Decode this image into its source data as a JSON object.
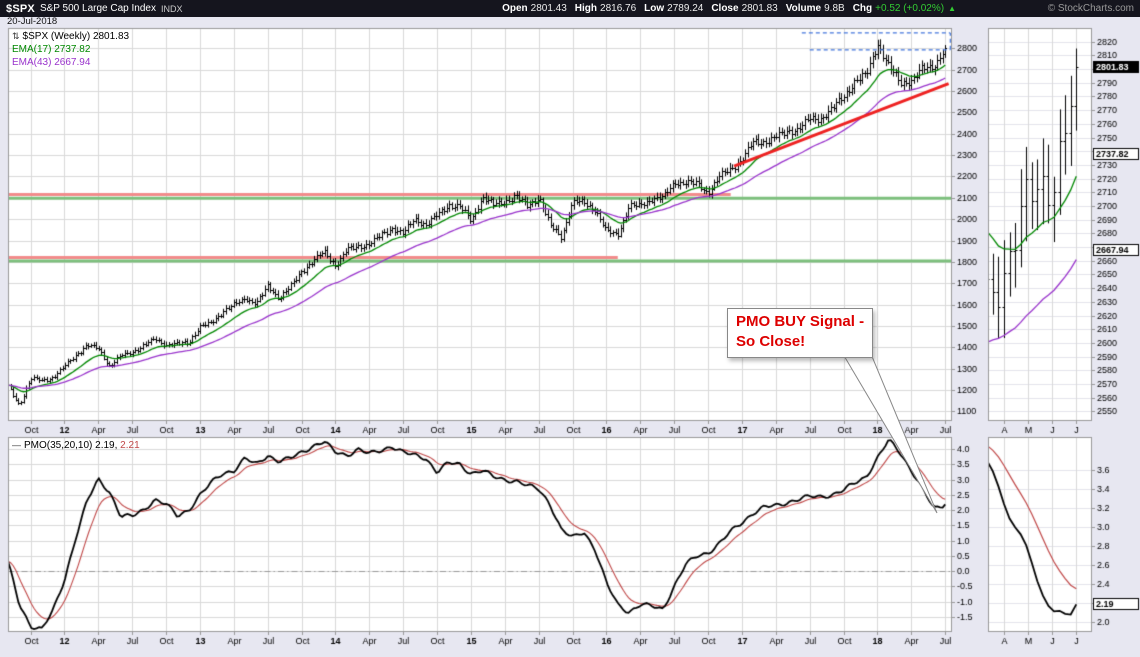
{
  "header": {
    "symbol": "$SPX",
    "index_name": "S&P 500 Large Cap Index",
    "exchange": "INDX",
    "copyright": "© StockCharts.com",
    "date": "20-Jul-2018",
    "quote": [
      {
        "label": "Open",
        "value": "2801.43"
      },
      {
        "label": "High",
        "value": "2816.76"
      },
      {
        "label": "Low",
        "value": "2789.24"
      },
      {
        "label": "Close",
        "value": "2801.83"
      },
      {
        "label": "Volume",
        "value": "9.8B"
      },
      {
        "label": "Chg",
        "value": "+0.52 (+0.02%)"
      }
    ]
  },
  "icons": {
    "price_style_icon": "⇅",
    "pmo_style_icon": "—",
    "change_up_arrow": "▲"
  },
  "legend": {
    "price_line": "$SPX (Weekly) 2801.83",
    "ema17": "EMA(17) 2737.82",
    "ema43": "EMA(43) 2667.94",
    "pmo_label": "PMO(35,20,10) 2.19,",
    "pmo_signal": "2.21"
  },
  "annotation": {
    "line1": "PMO BUY Signal -",
    "line2": "So Close!"
  },
  "colors": {
    "background": "#e7e7f1",
    "plot_bg": "#ffffff",
    "plot_border": "#999999",
    "grid": "#d9d9d9",
    "grid_light": "#e3e3ec",
    "bars": "#000000",
    "ema17": "#008800",
    "ema43": "#9933cc",
    "pmo": "#000000",
    "pmo_signal": "#c04848",
    "support_green": "#7cbf7c",
    "resistance_red": "#f28b8b",
    "trendline_red": "#ee2222",
    "dashed_blue": "#4477dd",
    "annotation_red": "#dd0000",
    "chg_green": "#33cc33",
    "header_bg": "#15151e",
    "zero_line": "#999999"
  },
  "chart_data": {
    "type": "ohlc",
    "timeframe": "weekly",
    "x_start_month": "2011-08",
    "x_end_month": "2018-07",
    "x_months": 84,
    "weekly_points": 362,
    "m_max": 83.6,
    "x_ticks": [
      {
        "m": 2,
        "label": "Oct"
      },
      {
        "m": 5,
        "label": "12",
        "b": true
      },
      {
        "m": 8,
        "label": "Apr"
      },
      {
        "m": 11,
        "label": "Jul"
      },
      {
        "m": 14,
        "label": "Oct"
      },
      {
        "m": 17,
        "label": "13",
        "b": true
      },
      {
        "m": 20,
        "label": "Apr"
      },
      {
        "m": 23,
        "label": "Jul"
      },
      {
        "m": 26,
        "label": "Oct"
      },
      {
        "m": 29,
        "label": "14",
        "b": true
      },
      {
        "m": 32,
        "label": "Apr"
      },
      {
        "m": 35,
        "label": "Jul"
      },
      {
        "m": 38,
        "label": "Oct"
      },
      {
        "m": 41,
        "label": "15",
        "b": true
      },
      {
        "m": 44,
        "label": "Apr"
      },
      {
        "m": 47,
        "label": "Jul"
      },
      {
        "m": 50,
        "label": "Oct"
      },
      {
        "m": 53,
        "label": "16",
        "b": true
      },
      {
        "m": 56,
        "label": "Apr"
      },
      {
        "m": 59,
        "label": "Jul"
      },
      {
        "m": 62,
        "label": "Oct"
      },
      {
        "m": 65,
        "label": "17",
        "b": true
      },
      {
        "m": 68,
        "label": "Apr"
      },
      {
        "m": 71,
        "label": "Jul"
      },
      {
        "m": 74,
        "label": "Oct"
      },
      {
        "m": 77,
        "label": "18",
        "b": true
      },
      {
        "m": 80,
        "label": "Apr"
      },
      {
        "m": 83,
        "label": "Jul"
      }
    ],
    "price_panel": {
      "ylim": [
        1055,
        2895
      ],
      "ytick_min": 1100,
      "ytick_max": 2800,
      "ytick_step": 100,
      "last_close": 2801.83,
      "ema_periods": [
        17,
        43
      ],
      "ema_last": [
        2737.82,
        2667.94
      ],
      "monthly_closes": [
        1219,
        1131,
        1253,
        1247,
        1258,
        1312,
        1366,
        1408,
        1398,
        1310,
        1362,
        1379,
        1407,
        1441,
        1412,
        1416,
        1426,
        1498,
        1515,
        1569,
        1598,
        1631,
        1606,
        1686,
        1633,
        1682,
        1757,
        1806,
        1848,
        1783,
        1859,
        1872,
        1884,
        1924,
        1960,
        1931,
        2003,
        1972,
        2018,
        2068,
        2059,
        1995,
        2105,
        2068,
        2086,
        2107,
        2063,
        2104,
        1972,
        1920,
        2079,
        2080,
        2044,
        1940,
        1932,
        2060,
        2065,
        2097,
        2099,
        2174,
        2171,
        2168,
        2126,
        2199,
        2239,
        2279,
        2364,
        2363,
        2384,
        2412,
        2423,
        2470,
        2472,
        2519,
        2575,
        2648,
        2674,
        2824,
        2714,
        2641,
        2648,
        2705,
        2718,
        2802
      ],
      "support_resistance": [
        {
          "value": 2098,
          "from_m": 0,
          "to_m": 83.6,
          "color": "#7cbf7c",
          "width": 3
        },
        {
          "value": 2116,
          "from_m": 0,
          "to_m": 64,
          "color": "#f28b8b",
          "width": 3
        },
        {
          "value": 1804,
          "from_m": 0,
          "to_m": 83.6,
          "color": "#7cbf7c",
          "width": 3
        },
        {
          "value": 1820,
          "from_m": 0,
          "to_m": 54,
          "color": "#f28b8b",
          "width": 3
        }
      ],
      "trendline": {
        "from_m": 64.3,
        "from_value": 2248,
        "to_m": 83.3,
        "to_value": 2635,
        "color": "#ee2222",
        "width": 3
      },
      "dashed_color": "#4477dd",
      "dashed_lines": [
        {
          "value": 2872,
          "from_m": 70.3,
          "to_m": 83.45
        },
        {
          "value": 2793,
          "from_m": 71.0,
          "to_m": 83.45
        }
      ],
      "dashed_vertical": {
        "m": 83.45,
        "from_value": 2793,
        "to_value": 2872
      }
    },
    "pmo_panel": {
      "ylim": [
        -2.0,
        4.4
      ],
      "yticks": [
        4.0,
        3.5,
        3.0,
        2.5,
        2.0,
        1.5,
        1.0,
        0.5,
        0.0,
        -0.5,
        -1.0,
        -1.5
      ],
      "zero_line": 0,
      "signal_period": 10,
      "last_pmo": 2.19,
      "last_signal": 2.21,
      "monthly_pmo": [
        0.3,
        -1.1,
        -1.8,
        -1.9,
        -1.3,
        -0.3,
        1.1,
        2.3,
        3.0,
        2.6,
        1.8,
        1.8,
        2.0,
        2.35,
        2.2,
        1.8,
        2.0,
        2.5,
        2.9,
        3.2,
        3.3,
        3.7,
        3.5,
        3.8,
        3.6,
        3.7,
        3.9,
        4.1,
        4.25,
        3.9,
        3.8,
        4.0,
        3.85,
        3.95,
        4.1,
        3.9,
        3.8,
        3.7,
        3.25,
        3.55,
        3.5,
        3.2,
        3.3,
        3.1,
        3.0,
        2.95,
        2.8,
        2.7,
        2.2,
        1.35,
        1.1,
        1.3,
        0.7,
        -0.4,
        -1.1,
        -1.35,
        -1.1,
        -1.15,
        -1.25,
        -0.5,
        0.2,
        0.5,
        0.6,
        0.9,
        1.3,
        1.6,
        1.9,
        2.1,
        2.15,
        2.25,
        2.35,
        2.45,
        2.45,
        2.5,
        2.65,
        2.9,
        3.1,
        3.7,
        4.3,
        3.9,
        3.3,
        2.7,
        2.05,
        2.19
      ]
    },
    "mini_price": {
      "mlim": [
        79.35,
        83.65
      ],
      "ylim": [
        2543,
        2830
      ],
      "yticks": [
        2820,
        2810,
        2800,
        2790,
        2780,
        2770,
        2760,
        2750,
        2740,
        2730,
        2720,
        2710,
        2700,
        2690,
        2680,
        2670,
        2660,
        2650,
        2640,
        2630,
        2620,
        2610,
        2600,
        2590,
        2580,
        2570,
        2560,
        2550
      ],
      "x_ticks": [
        {
          "m": 80,
          "label": "A"
        },
        {
          "m": 81,
          "label": "M"
        },
        {
          "m": 82,
          "label": "J"
        },
        {
          "m": 83,
          "label": "J"
        }
      ],
      "price_boxes": [
        {
          "value": 2801.83,
          "label": "2801.83",
          "style": "dark"
        },
        {
          "value": 2737.82,
          "label": "2737.82",
          "style": "light"
        },
        {
          "value": 2667.94,
          "label": "2667.94",
          "style": "light"
        }
      ]
    },
    "mini_pmo": {
      "mlim": [
        79.35,
        83.65
      ],
      "ylim": [
        1.9,
        3.95
      ],
      "yticks": [
        3.6,
        3.4,
        3.2,
        3.0,
        2.8,
        2.6,
        2.4,
        2.2,
        2.0
      ],
      "x_ticks": [
        {
          "m": 80,
          "label": "A"
        },
        {
          "m": 81,
          "label": "M"
        },
        {
          "m": 82,
          "label": "J"
        },
        {
          "m": 83,
          "label": "J"
        }
      ],
      "box": {
        "value": 2.19,
        "label": "2.19",
        "style": "light"
      }
    }
  }
}
